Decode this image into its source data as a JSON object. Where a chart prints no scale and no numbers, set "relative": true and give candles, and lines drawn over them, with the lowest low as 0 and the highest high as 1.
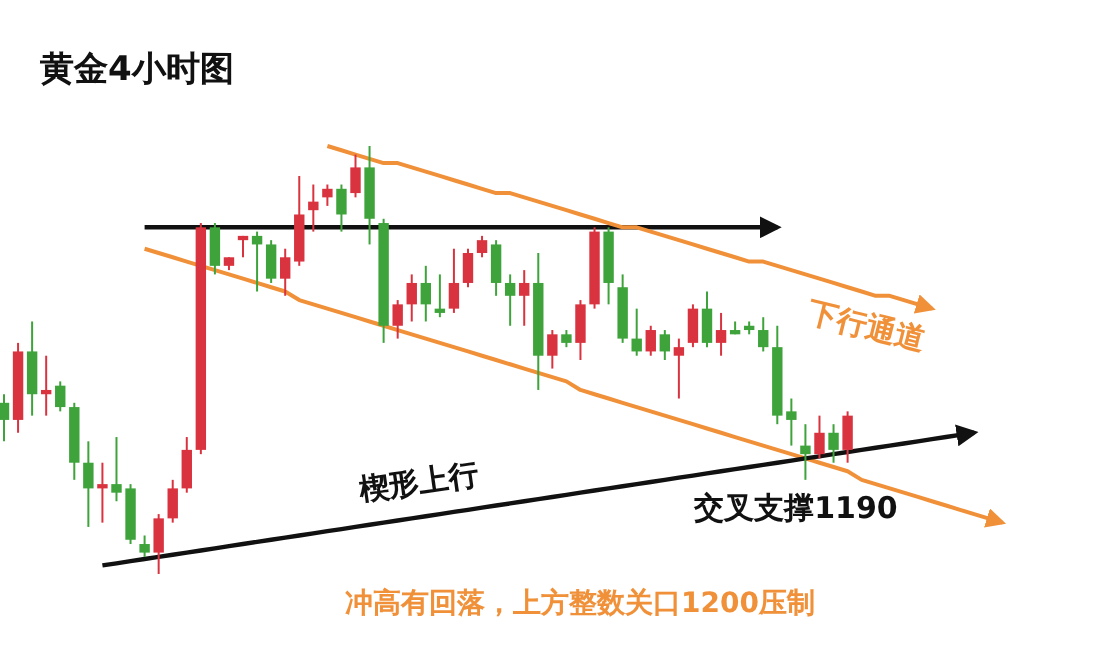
{
  "chart_data": {
    "type": "candlestick",
    "title": "黄金4小时图",
    "relative": true,
    "categories": [
      null,
      null,
      null,
      null,
      null,
      null,
      null,
      null,
      null,
      null,
      null,
      null,
      null,
      null,
      null,
      null,
      null,
      null,
      null,
      null,
      null,
      null,
      null,
      null,
      null,
      null,
      null,
      null,
      null,
      null,
      null,
      null,
      null,
      null,
      null,
      null,
      null,
      null,
      null,
      null,
      null,
      null,
      null,
      null,
      null,
      null,
      null,
      null,
      null,
      null,
      null,
      null,
      null,
      null,
      null,
      null,
      null,
      null,
      null,
      null,
      null,
      null,
      null,
      null,
      null,
      null,
      null,
      null,
      null,
      null,
      null,
      null
    ],
    "ohlc": [
      [
        0.4,
        0.42,
        0.31,
        0.36
      ],
      [
        0.36,
        0.54,
        0.33,
        0.52
      ],
      [
        0.52,
        0.59,
        0.37,
        0.42
      ],
      [
        0.42,
        0.51,
        0.37,
        0.43
      ],
      [
        0.44,
        0.45,
        0.38,
        0.39
      ],
      [
        0.39,
        0.4,
        0.22,
        0.26
      ],
      [
        0.26,
        0.31,
        0.11,
        0.2
      ],
      [
        0.2,
        0.26,
        0.12,
        0.21
      ],
      [
        0.21,
        0.32,
        0.17,
        0.19
      ],
      [
        0.2,
        0.21,
        0.07,
        0.08
      ],
      [
        0.07,
        0.09,
        0.04,
        0.05
      ],
      [
        0.05,
        0.14,
        0,
        0.13
      ],
      [
        0.13,
        0.22,
        0.12,
        0.2
      ],
      [
        0.2,
        0.32,
        0.19,
        0.29
      ],
      [
        0.29,
        0.82,
        0.28,
        0.81
      ],
      [
        0.81,
        0.82,
        0.7,
        0.72
      ],
      [
        0.72,
        0.74,
        0.71,
        0.74
      ],
      [
        0.78,
        0.79,
        0.74,
        0.79
      ],
      [
        0.79,
        0.8,
        0.66,
        0.77
      ],
      [
        0.77,
        0.78,
        0.68,
        0.69
      ],
      [
        0.69,
        0.76,
        0.65,
        0.74
      ],
      [
        0.73,
        0.93,
        0.72,
        0.84
      ],
      [
        0.85,
        0.91,
        0.8,
        0.87
      ],
      [
        0.88,
        0.91,
        0.86,
        0.9
      ],
      [
        0.9,
        0.91,
        0.8,
        0.84
      ],
      [
        0.89,
        0.98,
        0.88,
        0.95
      ],
      [
        0.95,
        1,
        0.77,
        0.83
      ],
      [
        0.82,
        0.83,
        0.54,
        0.58
      ],
      [
        0.58,
        0.64,
        0.55,
        0.63
      ],
      [
        0.63,
        0.7,
        0.59,
        0.68
      ],
      [
        0.68,
        0.72,
        0.59,
        0.63
      ],
      [
        0.62,
        0.7,
        0.6,
        0.61
      ],
      [
        0.62,
        0.76,
        0.61,
        0.68
      ],
      [
        0.68,
        0.76,
        0.67,
        0.75
      ],
      [
        0.75,
        0.79,
        0.74,
        0.78
      ],
      [
        0.77,
        0.78,
        0.65,
        0.68
      ],
      [
        0.68,
        0.7,
        0.58,
        0.65
      ],
      [
        0.65,
        0.71,
        0.58,
        0.68
      ],
      [
        0.68,
        0.75,
        0.43,
        0.51
      ],
      [
        0.51,
        0.57,
        0.48,
        0.56
      ],
      [
        0.56,
        0.57,
        0.53,
        0.54
      ],
      [
        0.54,
        0.64,
        0.5,
        0.63
      ],
      [
        0.63,
        0.81,
        0.62,
        0.8
      ],
      [
        0.8,
        0.81,
        0.63,
        0.68
      ],
      [
        0.67,
        0.7,
        0.54,
        0.55
      ],
      [
        0.55,
        0.62,
        0.51,
        0.52
      ],
      [
        0.52,
        0.58,
        0.51,
        0.57
      ],
      [
        0.56,
        0.57,
        0.5,
        0.52
      ],
      [
        0.51,
        0.55,
        0.41,
        0.53
      ],
      [
        0.54,
        0.63,
        0.53,
        0.62
      ],
      [
        0.62,
        0.66,
        0.53,
        0.54
      ],
      [
        0.54,
        0.61,
        0.51,
        0.57
      ],
      [
        0.57,
        0.59,
        0.56,
        0.56
      ],
      [
        0.58,
        0.59,
        0.56,
        0.57
      ],
      [
        0.57,
        0.6,
        0.52,
        0.53
      ],
      [
        0.53,
        0.58,
        0.35,
        0.37
      ],
      [
        0.38,
        0.41,
        0.3,
        0.36
      ],
      [
        0.3,
        0.35,
        0.22,
        0.28
      ],
      [
        0.28,
        0.37,
        0.27,
        0.33
      ],
      [
        0.33,
        0.35,
        0.26,
        0.29
      ],
      [
        0.29,
        0.38,
        0.26,
        0.37
      ],
      null,
      null,
      null,
      null,
      null,
      null,
      null,
      null,
      null,
      null,
      null
    ],
    "series": [
      {
        "type": "line",
        "color": "#111111",
        "values": [
          null,
          null,
          null,
          null,
          null,
          null,
          null,
          null,
          null,
          null,
          0.81,
          0.81,
          0.81,
          0.81,
          0.81,
          0.81,
          0.81,
          0.81,
          0.81,
          0.81,
          0.81,
          0.81,
          0.81,
          0.81,
          0.81,
          0.81,
          0.81,
          0.81,
          0.81,
          0.81,
          0.81,
          0.81,
          0.81,
          0.81,
          0.81,
          0.81,
          0.81,
          0.81,
          0.81,
          0.81,
          0.81,
          0.81,
          0.81,
          0.81,
          0.81,
          0.81,
          0.81,
          0.81,
          0.81,
          0.81,
          0.81,
          0.81,
          0.81,
          0.81,
          0.81,
          0.81,
          null,
          null,
          null,
          null,
          null,
          null,
          null,
          null,
          null,
          null,
          null,
          null,
          null,
          null,
          null,
          null
        ]
      },
      {
        "type": "line",
        "color": "#f0913a",
        "values": [
          null,
          null,
          null,
          null,
          null,
          null,
          null,
          null,
          null,
          null,
          null,
          null,
          null,
          null,
          null,
          null,
          null,
          null,
          null,
          null,
          null,
          null,
          null,
          1.0,
          0.99,
          0.98,
          0.97,
          0.96,
          0.96,
          0.95,
          0.94,
          0.93,
          0.92,
          0.91,
          0.9,
          0.89,
          0.89,
          0.88,
          0.87,
          0.86,
          0.85,
          0.84,
          0.83,
          0.82,
          0.81,
          0.81,
          0.8,
          0.79,
          0.78,
          0.77,
          0.76,
          0.75,
          0.74,
          0.73,
          0.73,
          0.72,
          0.71,
          0.7,
          0.69,
          0.68,
          0.67,
          0.66,
          0.65,
          0.65,
          0.64,
          0.63,
          0.62,
          null,
          null,
          null,
          null,
          null
        ]
      },
      {
        "type": "line",
        "color": "#f0913a",
        "values": [
          null,
          null,
          null,
          null,
          null,
          null,
          null,
          null,
          null,
          null,
          0.76,
          0.75,
          0.74,
          0.73,
          0.72,
          0.71,
          0.7,
          0.69,
          0.68,
          0.67,
          0.66,
          0.64,
          0.63,
          0.62,
          0.61,
          0.6,
          0.59,
          0.58,
          0.57,
          0.56,
          0.55,
          0.54,
          0.53,
          0.52,
          0.51,
          0.5,
          0.49,
          0.48,
          0.47,
          0.46,
          0.45,
          0.43,
          0.42,
          0.41,
          0.4,
          0.39,
          0.38,
          0.37,
          0.36,
          0.35,
          0.34,
          0.33,
          0.32,
          0.31,
          0.3,
          0.29,
          0.28,
          0.27,
          0.26,
          0.25,
          0.24,
          0.22,
          0.21,
          0.2,
          0.19,
          0.18,
          0.17,
          0.16,
          0.15,
          0.14,
          0.13,
          0.12
        ]
      },
      {
        "type": "line",
        "color": "#111111",
        "values": [
          null,
          null,
          null,
          null,
          null,
          null,
          null,
          0.02,
          0.025,
          0.03,
          0.035,
          0.04,
          0.045,
          0.05,
          0.055,
          0.06,
          0.065,
          0.07,
          0.075,
          0.08,
          0.085,
          0.09,
          0.095,
          0.1,
          0.105,
          0.11,
          0.115,
          0.12,
          0.125,
          0.13,
          0.135,
          0.14,
          0.145,
          0.15,
          0.155,
          0.16,
          0.165,
          0.17,
          0.175,
          0.18,
          0.185,
          0.19,
          0.195,
          0.2,
          0.205,
          0.21,
          0.215,
          0.22,
          0.225,
          0.23,
          0.235,
          0.24,
          0.245,
          0.25,
          0.255,
          0.26,
          0.265,
          0.27,
          0.275,
          0.28,
          0.285,
          0.29,
          0.295,
          0.3,
          0.305,
          0.31,
          0.315,
          0.32,
          0.325,
          0.33,
          null,
          null
        ]
      }
    ],
    "annotations": [
      "下行通道",
      "楔形上行",
      "交叉支撑1190",
      "冲高有回落，上方整数关口1200压制"
    ]
  }
}
